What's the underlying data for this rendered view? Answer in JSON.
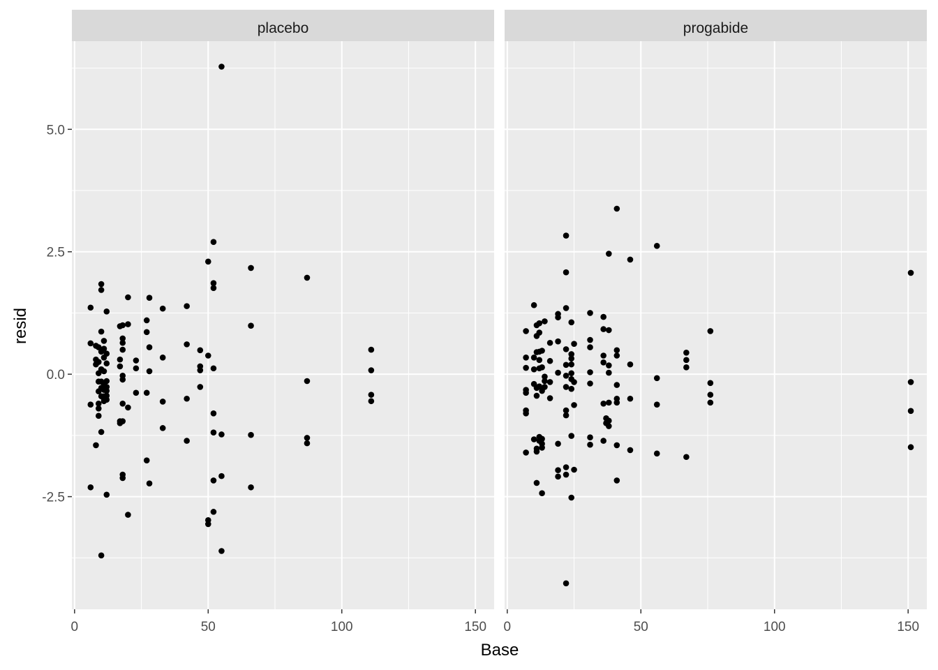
{
  "chart_data": {
    "type": "scatter",
    "facet_by": "treatment",
    "xlabel": "Base",
    "ylabel": "resid",
    "xlim": [
      -1,
      157
    ],
    "ylim": [
      -4.8,
      6.8
    ],
    "x_ticks": [
      0,
      50,
      100,
      150
    ],
    "x_tick_labels": [
      "0",
      "50",
      "100",
      "150"
    ],
    "y_ticks": [
      -2.5,
      0,
      2.5,
      5
    ],
    "y_tick_labels": [
      "-2.5",
      "0.0",
      "2.5",
      "5.0"
    ],
    "grid": true,
    "legend": "none",
    "colors": {
      "panel": "#EBEBEB",
      "strip": "#D9D9D9",
      "grid": "#FFFFFF",
      "point": "#000000"
    },
    "panels": [
      {
        "name": "placebo",
        "points": [
          [
            6,
            1.36
          ],
          [
            6,
            0.63
          ],
          [
            6,
            -0.62
          ],
          [
            6,
            -2.31
          ],
          [
            8,
            0.58
          ],
          [
            8,
            0.3
          ],
          [
            8,
            0.2
          ],
          [
            8,
            -1.45
          ],
          [
            9,
            0.55
          ],
          [
            9,
            0.25
          ],
          [
            9,
            0.02
          ],
          [
            9,
            -0.15
          ],
          [
            9,
            -0.35
          ],
          [
            9,
            -0.6
          ],
          [
            9,
            -0.7
          ],
          [
            9,
            -0.85
          ],
          [
            10,
            1.84
          ],
          [
            10,
            1.72
          ],
          [
            10,
            0.87
          ],
          [
            10,
            0.46
          ],
          [
            10,
            0.1
          ],
          [
            10,
            -0.15
          ],
          [
            10,
            -0.28
          ],
          [
            10,
            -0.45
          ],
          [
            10,
            -1.18
          ],
          [
            10,
            -3.7
          ],
          [
            11,
            0.68
          ],
          [
            11,
            0.52
          ],
          [
            11,
            0.34
          ],
          [
            11,
            0.06
          ],
          [
            11,
            -0.2
          ],
          [
            11,
            -0.32
          ],
          [
            11,
            -0.45
          ],
          [
            11,
            -0.5
          ],
          [
            11,
            -0.55
          ],
          [
            12,
            1.28
          ],
          [
            12,
            0.42
          ],
          [
            12,
            0.22
          ],
          [
            12,
            -0.14
          ],
          [
            12,
            -0.26
          ],
          [
            12,
            -0.34
          ],
          [
            12,
            -0.44
          ],
          [
            12,
            -0.52
          ],
          [
            12,
            -2.46
          ],
          [
            17,
            0.98
          ],
          [
            17,
            0.3
          ],
          [
            17,
            0.16
          ],
          [
            17,
            -0.96
          ],
          [
            17,
            -1.0
          ],
          [
            18,
            1.0
          ],
          [
            18,
            0.73
          ],
          [
            18,
            0.64
          ],
          [
            18,
            0.5
          ],
          [
            18,
            -0.03
          ],
          [
            18,
            -0.11
          ],
          [
            18,
            -0.6
          ],
          [
            18,
            -0.96
          ],
          [
            18,
            -2.05
          ],
          [
            18,
            -2.12
          ],
          [
            20,
            1.57
          ],
          [
            20,
            1.02
          ],
          [
            20,
            -0.68
          ],
          [
            20,
            -2.87
          ],
          [
            23,
            0.28
          ],
          [
            23,
            0.12
          ],
          [
            23,
            -0.38
          ],
          [
            27,
            1.1
          ],
          [
            27,
            0.86
          ],
          [
            27,
            -0.38
          ],
          [
            27,
            -1.76
          ],
          [
            28,
            1.56
          ],
          [
            28,
            0.55
          ],
          [
            28,
            0.06
          ],
          [
            28,
            -2.23
          ],
          [
            33,
            1.34
          ],
          [
            33,
            0.34
          ],
          [
            33,
            -0.56
          ],
          [
            33,
            -1.1
          ],
          [
            42,
            1.39
          ],
          [
            42,
            0.61
          ],
          [
            42,
            -0.5
          ],
          [
            42,
            -1.36
          ],
          [
            47,
            0.49
          ],
          [
            47,
            0.16
          ],
          [
            47,
            0.08
          ],
          [
            47,
            -0.26
          ],
          [
            50,
            2.3
          ],
          [
            50,
            0.38
          ],
          [
            50,
            -2.98
          ],
          [
            50,
            -3.06
          ],
          [
            52,
            2.7
          ],
          [
            52,
            1.86
          ],
          [
            52,
            1.76
          ],
          [
            52,
            0.12
          ],
          [
            52,
            -0.8
          ],
          [
            52,
            -1.19
          ],
          [
            52,
            -2.17
          ],
          [
            52,
            -2.81
          ],
          [
            55,
            6.28
          ],
          [
            55,
            -1.23
          ],
          [
            55,
            -2.08
          ],
          [
            55,
            -3.61
          ],
          [
            66,
            2.17
          ],
          [
            66,
            0.99
          ],
          [
            66,
            -1.24
          ],
          [
            66,
            -2.31
          ],
          [
            87,
            1.97
          ],
          [
            87,
            -0.14
          ],
          [
            87,
            -1.3
          ],
          [
            87,
            -1.41
          ],
          [
            111,
            0.5
          ],
          [
            111,
            0.08
          ],
          [
            111,
            -0.42
          ],
          [
            111,
            -0.55
          ]
        ]
      },
      {
        "name": "progabide",
        "points": [
          [
            7,
            0.88
          ],
          [
            7,
            0.34
          ],
          [
            7,
            0.13
          ],
          [
            7,
            -0.32
          ],
          [
            7,
            -0.38
          ],
          [
            7,
            -0.74
          ],
          [
            7,
            -0.8
          ],
          [
            7,
            -1.6
          ],
          [
            10,
            1.41
          ],
          [
            10,
            0.34
          ],
          [
            10,
            0.1
          ],
          [
            10,
            -0.2
          ],
          [
            10,
            -1.33
          ],
          [
            11,
            1.0
          ],
          [
            11,
            0.78
          ],
          [
            11,
            0.45
          ],
          [
            11,
            -0.28
          ],
          [
            11,
            -0.44
          ],
          [
            11,
            -1.52
          ],
          [
            11,
            -1.58
          ],
          [
            11,
            -2.22
          ],
          [
            12,
            1.04
          ],
          [
            12,
            0.85
          ],
          [
            12,
            0.46
          ],
          [
            12,
            0.29
          ],
          [
            12,
            0.12
          ],
          [
            12,
            -0.25
          ],
          [
            12,
            -1.28
          ],
          [
            12,
            -1.36
          ],
          [
            13,
            0.48
          ],
          [
            13,
            0.14
          ],
          [
            13,
            -0.34
          ],
          [
            13,
            -1.32
          ],
          [
            13,
            -1.42
          ],
          [
            13,
            -1.5
          ],
          [
            13,
            -2.43
          ],
          [
            14,
            1.08
          ],
          [
            14,
            -0.05
          ],
          [
            14,
            -0.14
          ],
          [
            14,
            -0.26
          ],
          [
            16,
            0.64
          ],
          [
            16,
            0.27
          ],
          [
            16,
            -0.16
          ],
          [
            16,
            -0.49
          ],
          [
            19,
            1.23
          ],
          [
            19,
            1.16
          ],
          [
            19,
            0.67
          ],
          [
            19,
            0.03
          ],
          [
            19,
            -1.42
          ],
          [
            19,
            -1.96
          ],
          [
            19,
            -2.09
          ],
          [
            22,
            2.83
          ],
          [
            22,
            2.08
          ],
          [
            22,
            1.35
          ],
          [
            22,
            0.51
          ],
          [
            22,
            0.19
          ],
          [
            22,
            -0.03
          ],
          [
            22,
            -0.26
          ],
          [
            22,
            -0.74
          ],
          [
            22,
            -0.84
          ],
          [
            22,
            -1.9
          ],
          [
            22,
            -2.05
          ],
          [
            22,
            -4.27
          ],
          [
            24,
            1.06
          ],
          [
            24,
            0.41
          ],
          [
            24,
            0.32
          ],
          [
            24,
            0.2
          ],
          [
            24,
            0.02
          ],
          [
            24,
            -0.1
          ],
          [
            24,
            -0.3
          ],
          [
            24,
            -1.26
          ],
          [
            24,
            -2.52
          ],
          [
            25,
            0.62
          ],
          [
            25,
            -0.16
          ],
          [
            25,
            -0.63
          ],
          [
            25,
            -1.95
          ],
          [
            31,
            1.25
          ],
          [
            31,
            0.7
          ],
          [
            31,
            0.55
          ],
          [
            31,
            0.04
          ],
          [
            31,
            -0.19
          ],
          [
            31,
            -1.29
          ],
          [
            31,
            -1.44
          ],
          [
            36,
            1.17
          ],
          [
            36,
            0.92
          ],
          [
            36,
            0.38
          ],
          [
            36,
            0.24
          ],
          [
            36,
            -0.6
          ],
          [
            36,
            -1.36
          ],
          [
            37,
            -0.9
          ],
          [
            37,
            -1.0
          ],
          [
            38,
            2.46
          ],
          [
            38,
            0.9
          ],
          [
            38,
            0.18
          ],
          [
            38,
            0.03
          ],
          [
            38,
            -0.58
          ],
          [
            38,
            -0.95
          ],
          [
            38,
            -1.06
          ],
          [
            41,
            3.38
          ],
          [
            41,
            0.49
          ],
          [
            41,
            0.38
          ],
          [
            41,
            -0.22
          ],
          [
            41,
            -0.5
          ],
          [
            41,
            -0.58
          ],
          [
            41,
            -1.45
          ],
          [
            41,
            -2.17
          ],
          [
            46,
            2.34
          ],
          [
            46,
            0.2
          ],
          [
            46,
            -0.5
          ],
          [
            46,
            -1.55
          ],
          [
            56,
            2.62
          ],
          [
            56,
            -0.08
          ],
          [
            56,
            -0.62
          ],
          [
            56,
            -1.62
          ],
          [
            67,
            0.44
          ],
          [
            67,
            0.29
          ],
          [
            67,
            0.14
          ],
          [
            67,
            -1.69
          ],
          [
            76,
            0.88
          ],
          [
            76,
            -0.18
          ],
          [
            76,
            -0.42
          ],
          [
            76,
            -0.58
          ],
          [
            151,
            2.07
          ],
          [
            151,
            -0.16
          ],
          [
            151,
            -0.75
          ],
          [
            151,
            -1.49
          ]
        ]
      }
    ]
  }
}
